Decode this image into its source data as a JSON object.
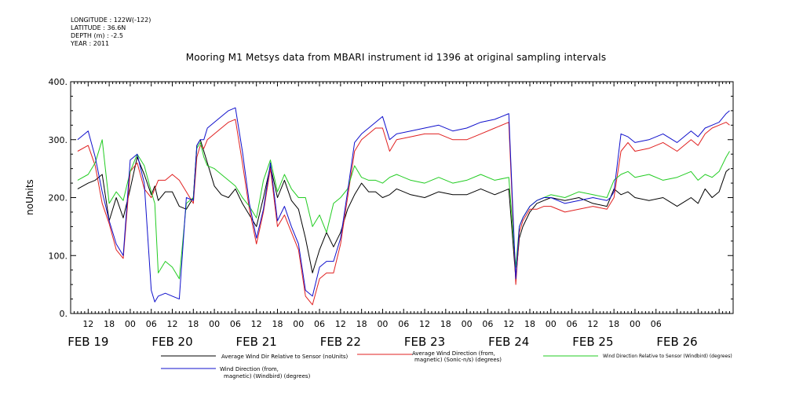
{
  "meta": {
    "longitude": "LONGITUDE : 122W(-122)",
    "latitude": "LATITUDE : 36.6N",
    "depth": "DEPTH (m) : -2.5",
    "year": "YEAR : 2011"
  },
  "chart_data": {
    "type": "line",
    "title": "Mooring M1 Metsys data from MBARI instrument id 1396 at original sampling intervals",
    "ylabel": "noUnits",
    "xlabel": "",
    "ylim": [
      0,
      400
    ],
    "yticks": [
      0,
      100,
      200,
      300,
      400
    ],
    "ytick_labels": [
      "0.",
      "100.",
      "200.",
      "300.",
      "400."
    ],
    "xlim_hours": [
      -17,
      172
    ],
    "hour_ticks": [
      "12",
      "18",
      "00",
      "06",
      "12",
      "18",
      "00",
      "06",
      "12",
      "18",
      "00",
      "06",
      "12",
      "18",
      "00",
      "06",
      "12",
      "18",
      "00",
      "06",
      "12",
      "18",
      "00",
      "06",
      "12",
      "18",
      "00",
      "06"
    ],
    "day_labels": [
      "FEB 19",
      "FEB 20",
      "FEB 21",
      "FEB 22",
      "FEB 23",
      "FEB 24",
      "FEB 25",
      "FEB 26"
    ],
    "grid": false,
    "legend_position": "bottom",
    "series": [
      {
        "name": "Average Wind Dir Relative to Sensor (noUnits)",
        "color": "#000000",
        "x": [
          -15,
          -12,
          -10,
          -8,
          -6,
          -4,
          -2,
          0,
          2,
          4,
          6,
          7,
          8,
          10,
          12,
          14,
          16,
          18,
          19,
          20,
          21,
          22,
          24,
          26,
          28,
          30,
          32,
          34,
          36,
          38,
          40,
          42,
          44,
          46,
          48,
          50,
          52,
          54,
          56,
          58,
          60,
          62,
          64,
          66,
          68,
          70,
          72,
          74,
          76,
          80,
          84,
          88,
          92,
          96,
          100,
          104,
          108,
          110,
          111,
          112,
          114,
          116,
          118,
          120,
          124,
          128,
          132,
          136,
          137,
          138,
          140,
          142,
          144,
          148,
          152,
          156,
          160,
          162,
          164,
          166,
          168,
          170,
          171
        ],
        "y": [
          215,
          225,
          230,
          240,
          160,
          200,
          165,
          215,
          270,
          240,
          205,
          220,
          195,
          210,
          210,
          185,
          180,
          200,
          290,
          300,
          280,
          260,
          220,
          205,
          200,
          215,
          190,
          170,
          150,
          200,
          255,
          200,
          230,
          195,
          180,
          130,
          70,
          110,
          140,
          115,
          140,
          180,
          205,
          225,
          210,
          210,
          200,
          205,
          215,
          205,
          200,
          210,
          205,
          205,
          215,
          205,
          215,
          60,
          130,
          150,
          175,
          190,
          195,
          200,
          195,
          200,
          190,
          185,
          200,
          215,
          205,
          210,
          200,
          195,
          200,
          185,
          200,
          190,
          215,
          200,
          210,
          245,
          250
        ]
      },
      {
        "name": "Average Wind Direction (from, magnetic) (Sonic-n/s) (degrees)",
        "color": "#e02020",
        "x": [
          -15,
          -12,
          -10,
          -8,
          -6,
          -4,
          -2,
          0,
          2,
          4,
          6,
          7,
          8,
          10,
          12,
          14,
          16,
          18,
          19,
          20,
          21,
          22,
          24,
          26,
          28,
          30,
          32,
          34,
          36,
          38,
          40,
          42,
          44,
          46,
          48,
          50,
          52,
          54,
          56,
          58,
          60,
          62,
          64,
          66,
          68,
          70,
          72,
          74,
          76,
          80,
          84,
          88,
          92,
          96,
          100,
          104,
          108,
          110,
          111,
          112,
          114,
          116,
          118,
          120,
          124,
          128,
          132,
          136,
          137,
          138,
          140,
          142,
          144,
          148,
          152,
          156,
          160,
          162,
          164,
          166,
          168,
          170,
          171
        ],
        "y": [
          280,
          290,
          255,
          190,
          155,
          110,
          95,
          245,
          260,
          215,
          200,
          215,
          230,
          230,
          240,
          230,
          210,
          190,
          270,
          290,
          285,
          300,
          310,
          320,
          330,
          335,
          260,
          180,
          120,
          175,
          250,
          150,
          170,
          140,
          110,
          30,
          15,
          60,
          70,
          70,
          120,
          200,
          280,
          300,
          310,
          320,
          320,
          280,
          300,
          305,
          310,
          310,
          300,
          300,
          310,
          320,
          330,
          50,
          140,
          160,
          180,
          180,
          185,
          185,
          175,
          180,
          185,
          180,
          190,
          200,
          280,
          295,
          280,
          285,
          295,
          280,
          300,
          290,
          310,
          320,
          325,
          330,
          325
        ]
      },
      {
        "name": "Wind Direction Relative to Sensor (Windbird) (degrees)",
        "color": "#22cc22",
        "x": [
          -15,
          -12,
          -10,
          -8,
          -6,
          -4,
          -2,
          0,
          2,
          4,
          6,
          7,
          8,
          10,
          12,
          14,
          16,
          18,
          19,
          20,
          21,
          22,
          24,
          26,
          28,
          30,
          32,
          34,
          36,
          38,
          40,
          42,
          44,
          46,
          48,
          50,
          52,
          54,
          56,
          58,
          60,
          62,
          64,
          66,
          68,
          70,
          72,
          74,
          76,
          80,
          84,
          88,
          92,
          96,
          100,
          104,
          108,
          110,
          111,
          112,
          114,
          116,
          118,
          120,
          124,
          128,
          132,
          136,
          137,
          138,
          140,
          142,
          144,
          148,
          152,
          156,
          160,
          162,
          164,
          166,
          168,
          170,
          171
        ],
        "y": [
          230,
          240,
          260,
          300,
          190,
          210,
          195,
          245,
          275,
          255,
          210,
          190,
          70,
          90,
          80,
          60,
          190,
          200,
          285,
          295,
          270,
          255,
          250,
          240,
          230,
          220,
          200,
          185,
          165,
          230,
          265,
          210,
          240,
          215,
          200,
          200,
          150,
          170,
          140,
          190,
          200,
          215,
          255,
          235,
          230,
          230,
          225,
          235,
          240,
          230,
          225,
          235,
          225,
          230,
          240,
          230,
          235,
          80,
          150,
          165,
          185,
          195,
          200,
          205,
          200,
          210,
          205,
          200,
          215,
          230,
          240,
          245,
          235,
          240,
          230,
          235,
          245,
          230,
          240,
          235,
          245,
          270,
          280
        ]
      },
      {
        "name": "Wind Direction (from, magnetic) (Windbird) (degrees)",
        "color": "#1010cc",
        "x": [
          -15,
          -12,
          -10,
          -8,
          -6,
          -4,
          -2,
          0,
          2,
          4,
          6,
          7,
          8,
          10,
          12,
          14,
          16,
          18,
          19,
          20,
          21,
          22,
          24,
          26,
          28,
          30,
          32,
          34,
          36,
          38,
          40,
          42,
          44,
          46,
          48,
          50,
          52,
          54,
          56,
          58,
          60,
          62,
          64,
          66,
          68,
          70,
          72,
          74,
          76,
          80,
          84,
          88,
          92,
          96,
          100,
          104,
          108,
          110,
          111,
          112,
          114,
          116,
          118,
          120,
          124,
          128,
          132,
          136,
          137,
          138,
          140,
          142,
          144,
          148,
          152,
          156,
          160,
          162,
          164,
          166,
          168,
          170,
          171
        ],
        "y": [
          300,
          315,
          270,
          210,
          160,
          120,
          100,
          265,
          275,
          225,
          40,
          20,
          30,
          35,
          30,
          25,
          200,
          195,
          290,
          300,
          300,
          320,
          330,
          340,
          350,
          355,
          280,
          190,
          130,
          180,
          260,
          160,
          185,
          150,
          120,
          40,
          30,
          80,
          90,
          90,
          130,
          210,
          295,
          310,
          320,
          330,
          340,
          300,
          310,
          315,
          320,
          325,
          315,
          320,
          330,
          335,
          345,
          60,
          150,
          165,
          185,
          195,
          200,
          200,
          190,
          195,
          200,
          195,
          200,
          210,
          310,
          305,
          295,
          300,
          310,
          295,
          315,
          305,
          320,
          325,
          330,
          345,
          350
        ]
      }
    ]
  },
  "legend": [
    {
      "line1": "Average Wind Dir Relative to Sensor (noUnits)",
      "line2": "",
      "color": "#000000"
    },
    {
      "line1": "Average Wind Direction (from,",
      "line2": "magnetic) (Sonic-n/s) (degrees)",
      "color": "#e02020"
    },
    {
      "line1": "Wind Direction Relative to Sensor (Windbird) (degrees)",
      "line2": "",
      "color": "#22cc22"
    },
    {
      "line1": "Wind Direction (from,",
      "line2": "magnetic) (Windbird) (degrees)",
      "color": "#1010cc"
    }
  ]
}
